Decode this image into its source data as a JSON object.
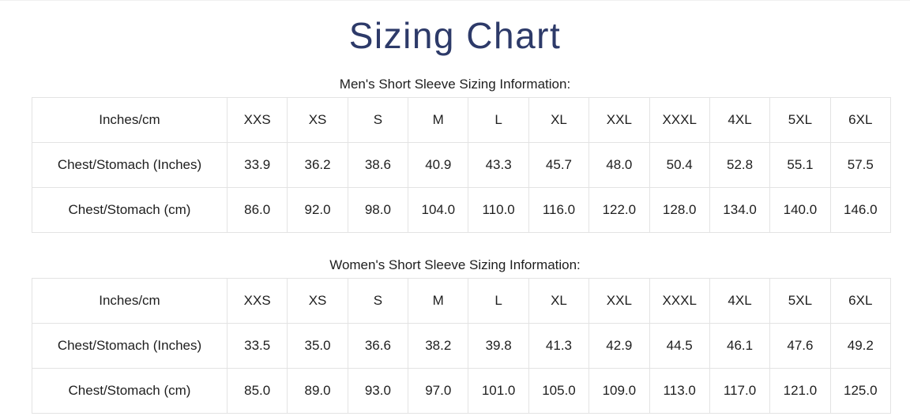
{
  "page": {
    "title": "Sizing Chart"
  },
  "colors": {
    "title_text": "#2d3a69",
    "table_border": "#e3e3e3",
    "body_text": "#1e1e1e",
    "background": "#ffffff"
  },
  "tables": [
    {
      "heading": "Men's Short Sleeve Sizing Information:",
      "columns": [
        "Inches/cm",
        "XXS",
        "XS",
        "S",
        "M",
        "L",
        "XL",
        "XXL",
        "XXXL",
        "4XL",
        "5XL",
        "6XL"
      ],
      "rows": [
        {
          "label": "Chest/Stomach (Inches)",
          "values": [
            "33.9",
            "36.2",
            "38.6",
            "40.9",
            "43.3",
            "45.7",
            "48.0",
            "50.4",
            "52.8",
            "55.1",
            "57.5"
          ]
        },
        {
          "label": "Chest/Stomach (cm)",
          "values": [
            "86.0",
            "92.0",
            "98.0",
            "104.0",
            "110.0",
            "116.0",
            "122.0",
            "128.0",
            "134.0",
            "140.0",
            "146.0"
          ]
        }
      ]
    },
    {
      "heading": "Women's Short Sleeve Sizing Information:",
      "columns": [
        "Inches/cm",
        "XXS",
        "XS",
        "S",
        "M",
        "L",
        "XL",
        "XXL",
        "XXXL",
        "4XL",
        "5XL",
        "6XL"
      ],
      "rows": [
        {
          "label": "Chest/Stomach (Inches)",
          "values": [
            "33.5",
            "35.0",
            "36.6",
            "38.2",
            "39.8",
            "41.3",
            "42.9",
            "44.5",
            "46.1",
            "47.6",
            "49.2"
          ]
        },
        {
          "label": "Chest/Stomach (cm)",
          "values": [
            "85.0",
            "89.0",
            "93.0",
            "97.0",
            "101.0",
            "105.0",
            "109.0",
            "113.0",
            "117.0",
            "121.0",
            "125.0"
          ]
        }
      ]
    }
  ]
}
